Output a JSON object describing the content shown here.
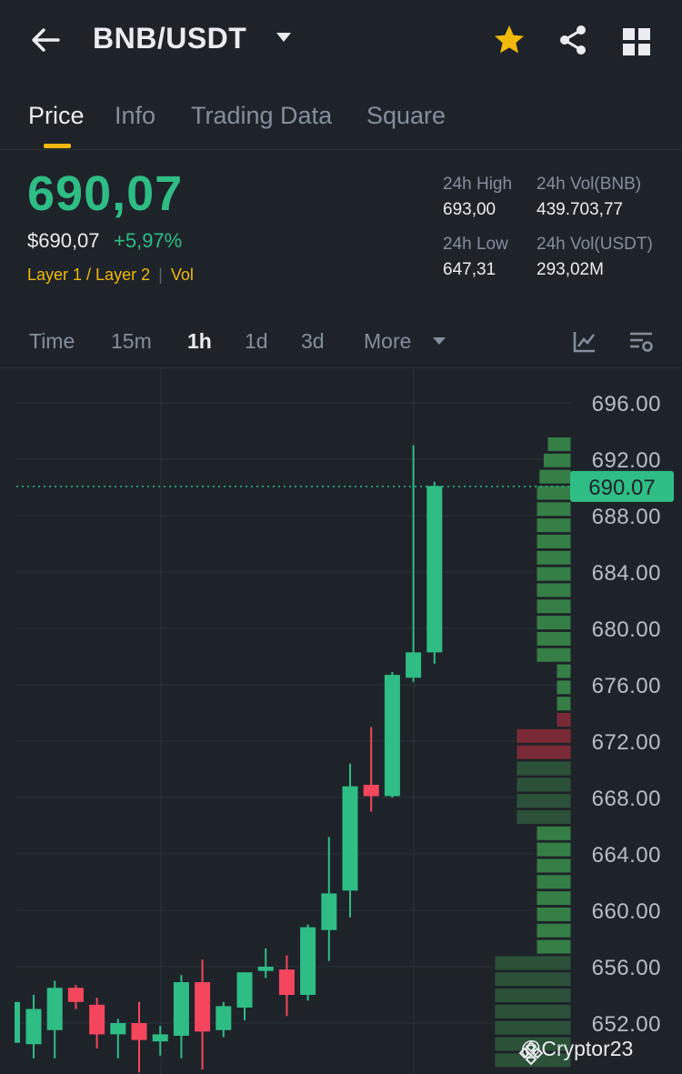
{
  "header": {
    "pair": "BNB/USDT",
    "icons": [
      "back-arrow-icon",
      "dropdown-caret-icon",
      "star-icon",
      "share-icon",
      "grid-icon"
    ],
    "star_color": "#f0b90b"
  },
  "tabs": [
    {
      "label": "Price",
      "active": true
    },
    {
      "label": "Info",
      "active": false
    },
    {
      "label": "Trading Data",
      "active": false
    },
    {
      "label": "Square",
      "active": false
    }
  ],
  "ticker": {
    "price": "690,07",
    "usd_price": "$690,07",
    "change": "+5,97%",
    "tags": [
      "Layer 1 / Layer 2",
      "Vol"
    ],
    "stats": [
      {
        "label": "24h High",
        "value": "693,00"
      },
      {
        "label": "24h Vol(BNB)",
        "value": "439.703,77"
      },
      {
        "label": "24h Low",
        "value": "647,31"
      },
      {
        "label": "24h Vol(USDT)",
        "value": "293,02M"
      }
    ]
  },
  "intervals": {
    "items": [
      "Time",
      "15m",
      "1h",
      "1d",
      "3d",
      "More"
    ],
    "active": "1h"
  },
  "chart_data": {
    "type": "candlestick",
    "y_ticks": [
      "696.00",
      "692.00",
      "688.00",
      "684.00",
      "680.00",
      "676.00",
      "672.00",
      "668.00",
      "664.00",
      "660.00",
      "656.00",
      "652.00"
    ],
    "ylim": [
      650,
      698
    ],
    "current_price_label": "690.07",
    "current_price": 690.07,
    "up_color": "#2ebd85",
    "down_color": "#f6465d",
    "candles": [
      {
        "o": 650.5,
        "h": 654,
        "l": 649.5,
        "c": 653
      },
      {
        "o": 651.5,
        "h": 655,
        "l": 649.5,
        "c": 654.5
      },
      {
        "o": 654.5,
        "h": 654.7,
        "l": 653,
        "c": 653.5
      },
      {
        "o": 653.3,
        "h": 653.8,
        "l": 650.2,
        "c": 651.2
      },
      {
        "o": 651.2,
        "h": 652.3,
        "l": 649.5,
        "c": 652
      },
      {
        "o": 652,
        "h": 653.5,
        "l": 648.5,
        "c": 650.8
      },
      {
        "o": 650.7,
        "h": 651.8,
        "l": 649.7,
        "c": 651.2
      },
      {
        "o": 651.1,
        "h": 655.4,
        "l": 649.5,
        "c": 654.9
      },
      {
        "o": 654.9,
        "h": 656.5,
        "l": 648.7,
        "c": 651.4
      },
      {
        "o": 651.5,
        "h": 653.5,
        "l": 651,
        "c": 653.2
      },
      {
        "o": 653.1,
        "h": 655.6,
        "l": 652.2,
        "c": 655.6
      },
      {
        "o": 655.7,
        "h": 657.3,
        "l": 655.2,
        "c": 656.0
      },
      {
        "o": 655.8,
        "h": 656.8,
        "l": 652.5,
        "c": 654.0
      },
      {
        "o": 654.0,
        "h": 659,
        "l": 653.6,
        "c": 658.8
      },
      {
        "o": 658.6,
        "h": 665.2,
        "l": 656.4,
        "c": 661.2
      },
      {
        "o": 661.4,
        "h": 670.4,
        "l": 659.5,
        "c": 668.8
      },
      {
        "o": 668.9,
        "h": 673.0,
        "l": 667.0,
        "c": 668.1
      },
      {
        "o": 668.1,
        "h": 676.9,
        "l": 668.0,
        "c": 676.7
      },
      {
        "o": 676.5,
        "h": 693.0,
        "l": 676.2,
        "c": 678.3
      },
      {
        "o": 678.3,
        "h": 690.4,
        "l": 677.5,
        "c": 690.1
      }
    ]
  },
  "watermark": "@Cryptor23"
}
